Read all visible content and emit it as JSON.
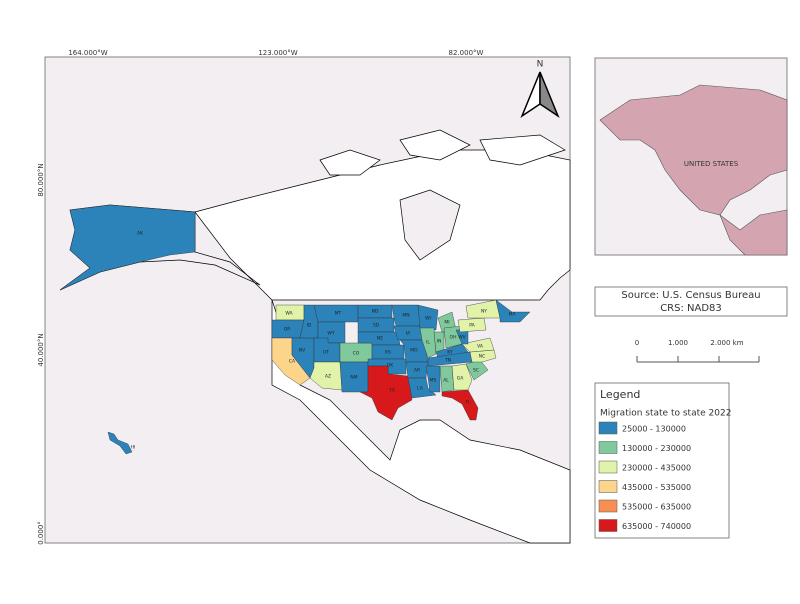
{
  "graticule": {
    "top": [
      "164.000°W",
      "123.000°W",
      "82.000°W"
    ],
    "left": [
      "80.000°N",
      "40.000°N",
      "0.000°"
    ]
  },
  "north_arrow": "N",
  "states": [
    {
      "label": "AK",
      "color": "#2b83ba"
    },
    {
      "label": "HI",
      "color": "#2b83ba"
    },
    {
      "label": "WA",
      "color": "#e0f3a8"
    },
    {
      "label": "OR",
      "color": "#2b83ba"
    },
    {
      "label": "CA",
      "color": "#fdd58a"
    },
    {
      "label": "NV",
      "color": "#2b83ba"
    },
    {
      "label": "ID",
      "color": "#2b83ba"
    },
    {
      "label": "MT",
      "color": "#2b83ba"
    },
    {
      "label": "WY",
      "color": "#2b83ba"
    },
    {
      "label": "UT",
      "color": "#2b83ba"
    },
    {
      "label": "AZ",
      "color": "#e0f3a8"
    },
    {
      "label": "CO",
      "color": "#80c99c"
    },
    {
      "label": "NM",
      "color": "#2b83ba"
    },
    {
      "label": "ND",
      "color": "#2b83ba"
    },
    {
      "label": "SD",
      "color": "#2b83ba"
    },
    {
      "label": "NE",
      "color": "#2b83ba"
    },
    {
      "label": "KS",
      "color": "#2b83ba"
    },
    {
      "label": "OK",
      "color": "#2b83ba"
    },
    {
      "label": "TX",
      "color": "#d7191c"
    },
    {
      "label": "MN",
      "color": "#2b83ba"
    },
    {
      "label": "IA",
      "color": "#2b83ba"
    },
    {
      "label": "MO",
      "color": "#2b83ba"
    },
    {
      "label": "AR",
      "color": "#2b83ba"
    },
    {
      "label": "LA",
      "color": "#2b83ba"
    },
    {
      "label": "WI",
      "color": "#2b83ba"
    },
    {
      "label": "IL",
      "color": "#80c99c"
    },
    {
      "label": "MI",
      "color": "#80c99c"
    },
    {
      "label": "IN",
      "color": "#80c99c"
    },
    {
      "label": "OH",
      "color": "#80c99c"
    },
    {
      "label": "KY",
      "color": "#2b83ba"
    },
    {
      "label": "TN",
      "color": "#2b83ba"
    },
    {
      "label": "MS",
      "color": "#2b83ba"
    },
    {
      "label": "AL",
      "color": "#80c99c"
    },
    {
      "label": "GA",
      "color": "#e0f3a8"
    },
    {
      "label": "FL",
      "color": "#d7191c"
    },
    {
      "label": "SC",
      "color": "#80c99c"
    },
    {
      "label": "NC",
      "color": "#e0f3a8"
    },
    {
      "label": "VA",
      "color": "#e0f3a8"
    },
    {
      "label": "WV",
      "color": "#2b83ba"
    },
    {
      "label": "PA",
      "color": "#e0f3a8"
    },
    {
      "label": "NY",
      "color": "#e0f3a8"
    },
    {
      "label": "MA",
      "color": "#2b83ba"
    }
  ],
  "inset": {
    "label": "UNITED STATES"
  },
  "source": {
    "line1": "Source: U.S. Census Bureau",
    "line2": "CRS: NAD83"
  },
  "scale_bar": {
    "labels": [
      "0",
      "1.000",
      "2.000 km"
    ]
  },
  "legend": {
    "title": "Legend",
    "subtitle": "Migration state to state 2022",
    "items": [
      {
        "label": "25000 - 130000",
        "color": "#2b83ba"
      },
      {
        "label": "130000 - 230000",
        "color": "#80c99c"
      },
      {
        "label": "230000 - 435000",
        "color": "#e0f3a8"
      },
      {
        "label": "435000 - 535000",
        "color": "#fdd58a"
      },
      {
        "label": "535000 - 635000",
        "color": "#f98e52"
      },
      {
        "label": "635000 - 740000",
        "color": "#d7191c"
      }
    ]
  }
}
